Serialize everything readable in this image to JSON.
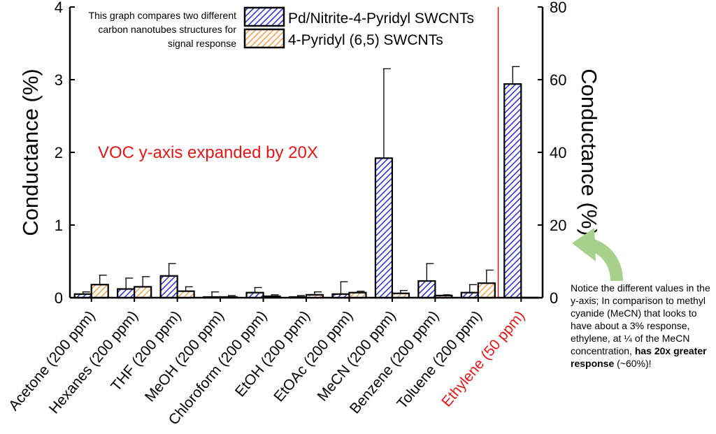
{
  "chart_data": {
    "type": "bar",
    "categories": [
      "Acetone (200 ppm)",
      "Hexanes (200 ppm)",
      "THF (200 ppm)",
      "MeOH (200 ppm)",
      "Chloroform (200 ppm)",
      "EtOH (200 ppm)",
      "EtOAc (200 ppm)",
      "MeCN (200 ppm)",
      "Benzene (200 ppm)",
      "Toluene (200 ppm)",
      "Ethylene (50 ppm)"
    ],
    "highlight_category": "Ethylene (50 ppm)",
    "series": [
      {
        "name": "Pd/Nitrite-4-Pyridyl SWCNTs",
        "color": "#2b2bd6",
        "values": [
          0.05,
          0.12,
          0.3,
          0.01,
          0.07,
          0.01,
          0.05,
          1.92,
          0.23,
          0.07,
          58.8
        ],
        "errors": [
          0.03,
          0.15,
          0.17,
          0.07,
          0.07,
          0.02,
          0.17,
          1.23,
          0.24,
          0.11,
          4.8
        ]
      },
      {
        "name": "4-Pyridyl (6,5) SWCNTs",
        "color": "#f0a050",
        "values": [
          0.18,
          0.15,
          0.09,
          0.01,
          0.02,
          0.04,
          0.07,
          0.06,
          0.03,
          0.2,
          0.05
        ],
        "errors": [
          0.13,
          0.14,
          0.06,
          0.02,
          0.02,
          0.04,
          0.02,
          0.04,
          0.01,
          0.18,
          0.0
        ]
      }
    ],
    "ylabel": "Conductance (%)",
    "ylim": [
      0,
      4
    ],
    "yticks": [
      "0",
      "1",
      "2",
      "3",
      "4"
    ],
    "y2label": "Conductance (%)",
    "y2lim": [
      0,
      80
    ],
    "y2ticks": [
      "0",
      "20",
      "40",
      "60",
      "80"
    ],
    "annotation": "VOC y-axis expanded by 20X",
    "annotation_color": "#e01818",
    "divider_color": "#e01818",
    "description": "This graph compares two different carbon nanotubes structures for signal response",
    "arrow_color": "#a8d08d"
  },
  "note": {
    "text_a": "Notice the different values in the y-axis; In comparison to methyl cyanide (MeCN) that looks to have about a 3% response, ethylene, at ¼ of the MeCN concentration, ",
    "bold": "has 20x greater response",
    "text_b": " (~60%)!"
  }
}
